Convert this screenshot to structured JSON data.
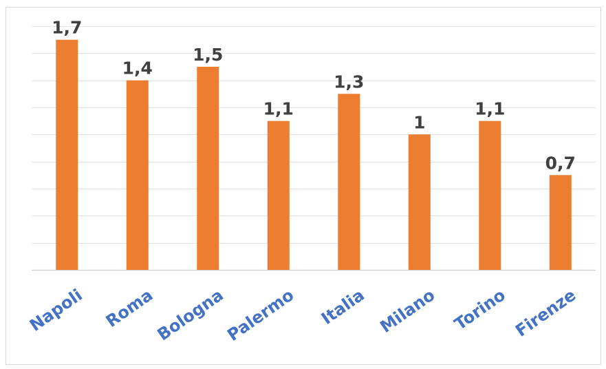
{
  "chart_data": {
    "type": "bar",
    "categories": [
      "Napoli",
      "Roma",
      "Bologna",
      "Palermo",
      "Italia",
      "Milano",
      "Torino",
      "Firenze"
    ],
    "values": [
      1.7,
      1.4,
      1.5,
      1.1,
      1.3,
      1,
      1.1,
      0.7
    ],
    "data_labels": [
      "1,7",
      "1,4",
      "1,5",
      "1,1",
      "1,3",
      "1",
      "1,1",
      "0,7"
    ],
    "title": "",
    "xlabel": "",
    "ylabel": "",
    "ylim": [
      0,
      1.8
    ],
    "grid": true,
    "legend": "none",
    "colors": {
      "bar": "#ed7d31",
      "category_label": "#4472c4",
      "data_label": "#404040",
      "gridline": "#e3e3e3"
    }
  }
}
